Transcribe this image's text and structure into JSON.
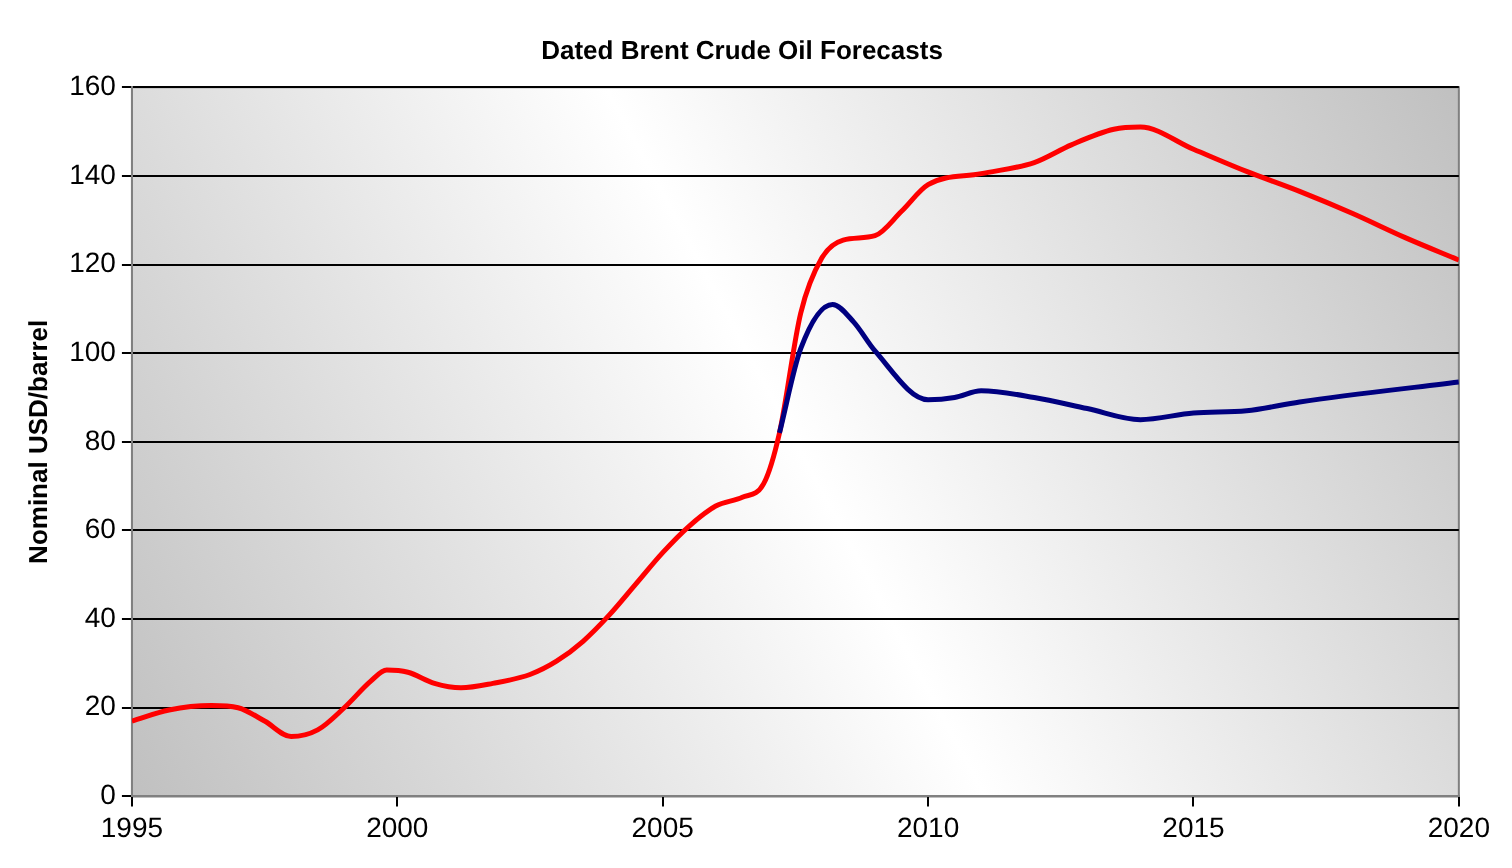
{
  "chart_data": {
    "type": "line",
    "title": "Dated Brent Crude Oil Forecasts",
    "ylabel": "Nominal USD/barrel",
    "xlim": [
      1995,
      2020
    ],
    "xticks": [
      1995,
      2000,
      2005,
      2010,
      2015,
      2020
    ],
    "ylim": [
      0,
      160
    ],
    "yticks": [
      0,
      20,
      40,
      60,
      80,
      100,
      120,
      140,
      160
    ],
    "grid": "y",
    "legend": false,
    "marker": "none",
    "line_style": "solid",
    "series": [
      {
        "color": "#000080",
        "x": [
          2007.2,
          2007.6,
          2008.2,
          2008.6,
          2009,
          2010,
          2010.5,
          2011,
          2012,
          2013,
          2014,
          2015,
          2016,
          2017,
          2020
        ],
        "values": [
          82,
          101,
          111,
          107,
          100.5,
          89.5,
          90,
          91.5,
          90,
          87.5,
          85,
          86.5,
          87,
          89,
          93.5
        ]
      },
      {
        "color": "#ff0000",
        "x": [
          1995,
          1995.7,
          1996.5,
          1997,
          1997.5,
          1998,
          1998.5,
          1999,
          1999.5,
          1999.8,
          2000.2,
          2000.7,
          2001.2,
          2001.8,
          2002.5,
          2003,
          2003.5,
          2004,
          2004.5,
          2005,
          2005.5,
          2006,
          2006.5,
          2006.9,
          2007.2,
          2007.6,
          2008,
          2008.4,
          2009,
          2009.5,
          2010,
          2011,
          2012,
          2012.7,
          2013.5,
          2014,
          2015,
          2016,
          2017,
          2018,
          2019,
          2020
        ],
        "values": [
          17,
          19.5,
          20.5,
          20,
          17,
          13.5,
          15,
          20,
          26,
          28.5,
          28,
          25.5,
          24.5,
          25.5,
          27.5,
          30.5,
          35,
          41,
          48,
          55,
          61,
          65.5,
          67.5,
          70.5,
          82,
          109,
          121.5,
          125.5,
          126.5,
          132,
          138,
          140.5,
          143,
          147,
          150.5,
          151,
          146,
          141,
          136.5,
          131.5,
          126,
          121
        ]
      }
    ]
  }
}
